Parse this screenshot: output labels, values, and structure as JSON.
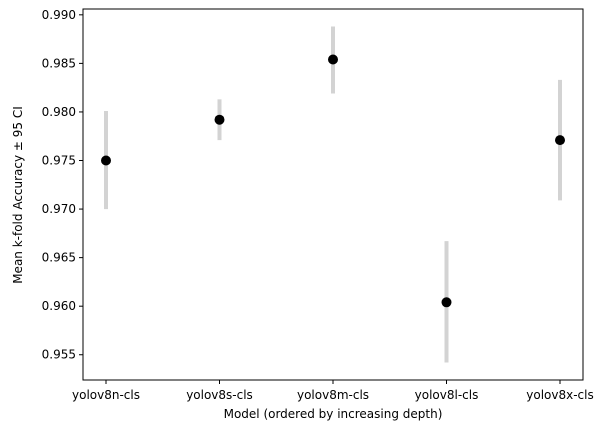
{
  "chart_data": {
    "type": "scatter",
    "title": "",
    "xlabel": "Model (ordered by increasing depth)",
    "ylabel": "Mean k-fold Accuracy ± 95 CI",
    "categories": [
      "yolov8n-cls",
      "yolov8s-cls",
      "yolov8m-cls",
      "yolov8l-cls",
      "yolov8x-cls"
    ],
    "series": [
      {
        "values": [
          0.975,
          0.9792,
          0.9854,
          0.9604,
          0.9771
        ],
        "ci_low": [
          0.97,
          0.9771,
          0.9819,
          0.9542,
          0.9709
        ],
        "ci_high": [
          0.9801,
          0.9813,
          0.9888,
          0.9667,
          0.9833
        ]
      }
    ],
    "yticks": [
      "0.955",
      "0.960",
      "0.965",
      "0.970",
      "0.975",
      "0.980",
      "0.985",
      "0.990"
    ],
    "ylim": [
      0.9524,
      0.9906
    ],
    "grid": false,
    "colors": {
      "marker": "#000000",
      "errorbar": "#d3d3d3",
      "axis": "#000000"
    }
  }
}
